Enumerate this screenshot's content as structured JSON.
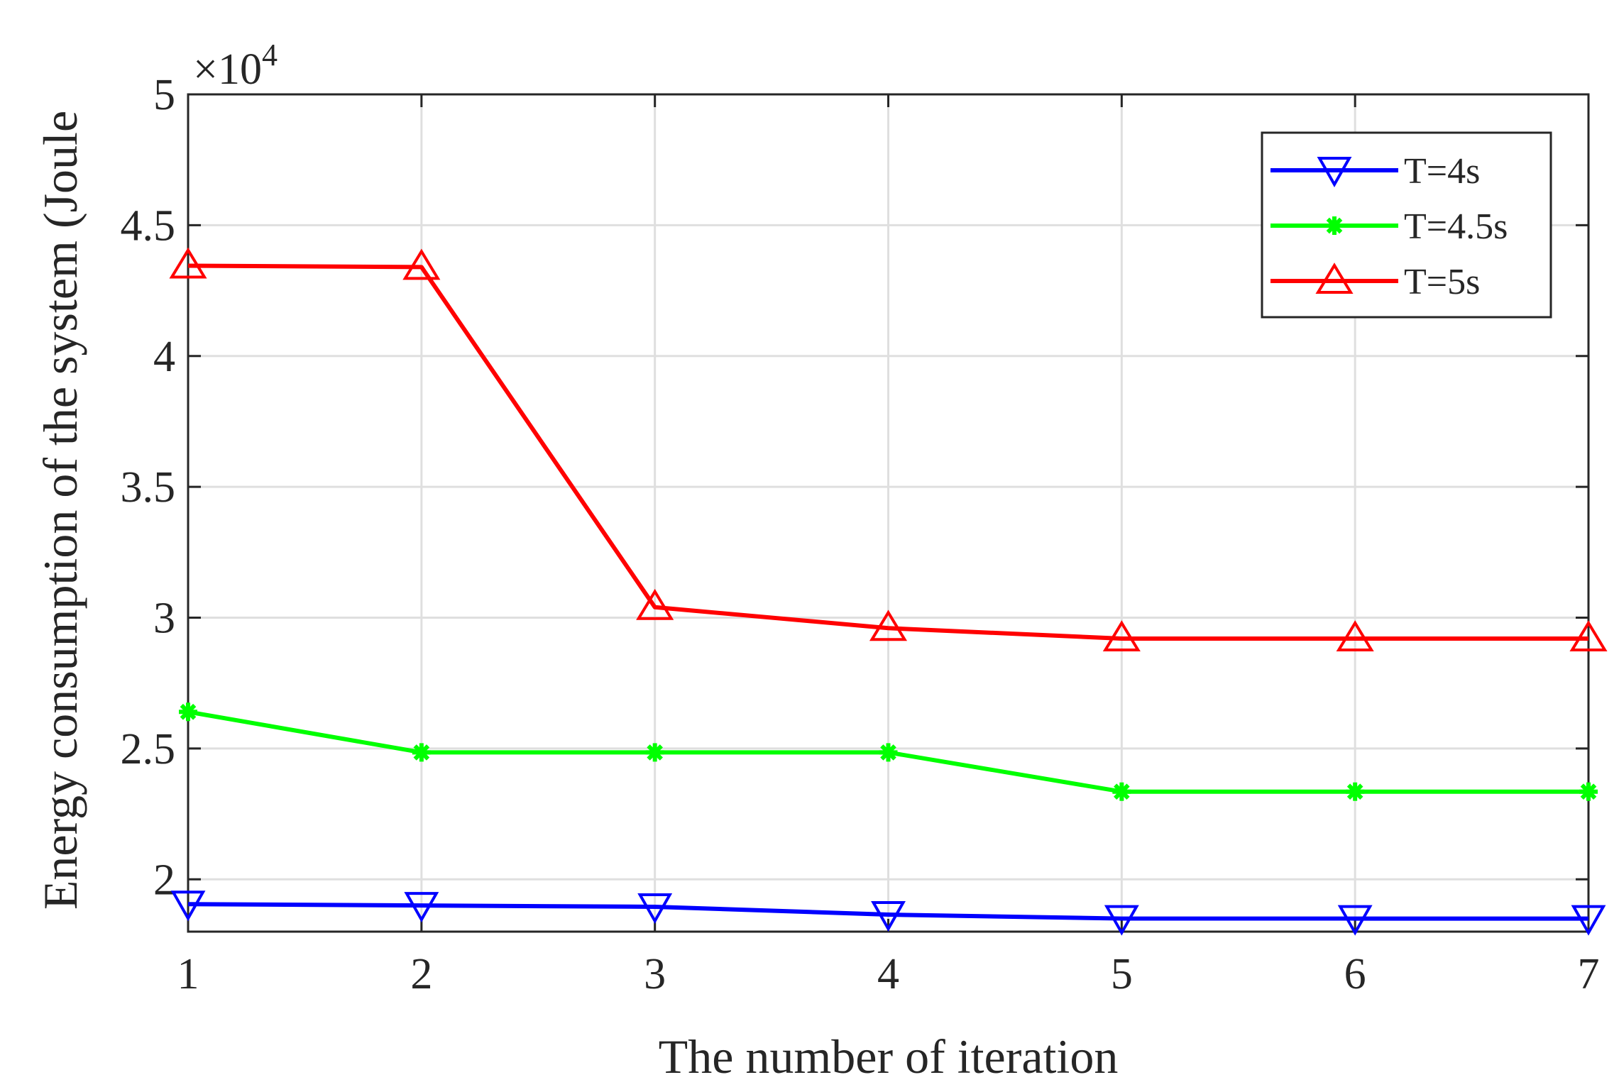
{
  "chart_data": {
    "type": "line",
    "xlabel": "The number of iteration",
    "ylabel": "Energy consumption of the system (Joule)",
    "ylabel_visible": "Energy consumption of the system (Joule",
    "exponent_prefix": "×10",
    "exponent_power": "4",
    "xlim": [
      1,
      7
    ],
    "ylim": [
      18000,
      50000
    ],
    "x": [
      1,
      2,
      3,
      4,
      5,
      6,
      7
    ],
    "x_ticks": [
      1,
      2,
      3,
      4,
      5,
      6,
      7
    ],
    "x_tick_labels": [
      "1",
      "2",
      "3",
      "4",
      "5",
      "6",
      "7"
    ],
    "y_ticks": [
      20000,
      25000,
      30000,
      35000,
      40000,
      45000,
      50000
    ],
    "y_tick_labels": [
      "2",
      "2.5",
      "3",
      "3.5",
      "4",
      "4.5",
      "5"
    ],
    "grid": true,
    "legend_position": "top-right",
    "series": [
      {
        "name": "T=4s",
        "color": "#0000ff",
        "marker": "triangle-down",
        "values": [
          19050,
          19000,
          18950,
          18650,
          18500,
          18500,
          18500
        ]
      },
      {
        "name": "T=4.5s",
        "color": "#00ff00",
        "marker": "asterisk",
        "values": [
          26400,
          24850,
          24850,
          24850,
          23350,
          23350,
          23350
        ]
      },
      {
        "name": "T=5s",
        "color": "#ff0000",
        "marker": "triangle-up",
        "values": [
          43450,
          43400,
          30400,
          29600,
          29200,
          29200,
          29200
        ]
      }
    ]
  }
}
